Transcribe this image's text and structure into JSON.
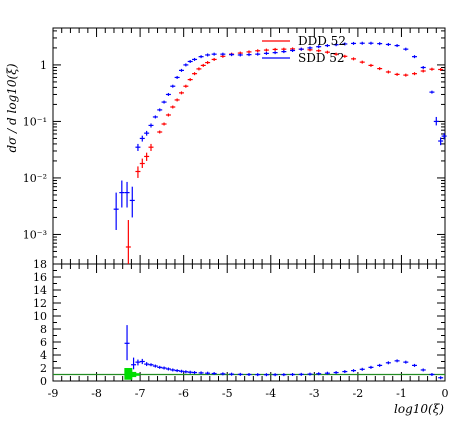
{
  "chart_data": [
    {
      "type": "scatter",
      "panel": "upper",
      "ylabel": "dσ / d log10(ξ)",
      "yscale": "log",
      "ylim": [
        0.0003,
        4.5
      ],
      "xlim": [
        -9,
        0
      ],
      "y_ticks": [
        {
          "value": 0.001,
          "label": "10⁻³"
        },
        {
          "value": 0.01,
          "label": "10⁻²"
        },
        {
          "value": 0.1,
          "label": "10⁻¹"
        },
        {
          "value": 1,
          "label": "1"
        }
      ],
      "legend": {
        "placement": "top-right",
        "entries": [
          "DDD 52",
          "SDD 52"
        ]
      },
      "series": [
        {
          "name": "DDD 52",
          "color": "#ff0000",
          "points": [
            [
              -7.27,
              0.0006,
              0.00025,
              0.0018
            ],
            [
              -7.05,
              0.013,
              0.01,
              0.016
            ],
            [
              -6.95,
              0.018,
              0.015,
              0.022
            ],
            [
              -6.85,
              0.024,
              0.02,
              0.028
            ],
            [
              -6.75,
              0.035,
              0.03,
              0.04
            ],
            [
              -6.55,
              0.065,
              null,
              null
            ],
            [
              -6.45,
              0.09,
              null,
              null
            ],
            [
              -6.35,
              0.13,
              null,
              null
            ],
            [
              -6.25,
              0.18,
              null,
              null
            ],
            [
              -6.15,
              0.24,
              null,
              null
            ],
            [
              -6.05,
              0.32,
              null,
              null
            ],
            [
              -5.95,
              0.42,
              null,
              null
            ],
            [
              -5.85,
              0.55,
              null,
              null
            ],
            [
              -5.75,
              0.7,
              null,
              null
            ],
            [
              -5.65,
              0.85,
              null,
              null
            ],
            [
              -5.55,
              0.98,
              null,
              null
            ],
            [
              -5.45,
              1.1,
              null,
              null
            ],
            [
              -5.3,
              1.25,
              null,
              null
            ],
            [
              -5.1,
              1.42,
              null,
              null
            ],
            [
              -4.9,
              1.55,
              null,
              null
            ],
            [
              -4.7,
              1.62,
              null,
              null
            ],
            [
              -4.5,
              1.7,
              null,
              null
            ],
            [
              -4.3,
              1.78,
              null,
              null
            ],
            [
              -4.1,
              1.83,
              null,
              null
            ],
            [
              -3.9,
              1.88,
              null,
              null
            ],
            [
              -3.7,
              1.9,
              null,
              null
            ],
            [
              -3.5,
              1.92,
              null,
              null
            ],
            [
              -3.3,
              1.9,
              null,
              null
            ],
            [
              -3.1,
              1.85,
              null,
              null
            ],
            [
              -2.9,
              1.78,
              null,
              null
            ],
            [
              -2.7,
              1.68,
              null,
              null
            ],
            [
              -2.5,
              1.55,
              null,
              null
            ],
            [
              -2.3,
              1.42,
              null,
              null
            ],
            [
              -2.1,
              1.28,
              null,
              null
            ],
            [
              -1.9,
              1.12,
              null,
              null
            ],
            [
              -1.7,
              0.98,
              null,
              null
            ],
            [
              -1.5,
              0.86,
              null,
              null
            ],
            [
              -1.3,
              0.75,
              null,
              null
            ],
            [
              -1.1,
              0.68,
              null,
              null
            ],
            [
              -0.9,
              0.66,
              null,
              null
            ],
            [
              -0.7,
              0.7,
              null,
              null
            ],
            [
              -0.5,
              0.78,
              null,
              null
            ],
            [
              -0.3,
              0.84,
              null,
              null
            ],
            [
              -0.1,
              0.83,
              null,
              null
            ]
          ]
        },
        {
          "name": "SDD 52",
          "color": "#0000ff",
          "points": [
            [
              -7.55,
              0.0028,
              0.0012,
              0.0055
            ],
            [
              -7.42,
              0.0055,
              0.003,
              0.009
            ],
            [
              -7.3,
              0.0055,
              0.003,
              0.0085
            ],
            [
              -7.18,
              0.004,
              0.002,
              0.007
            ],
            [
              -7.05,
              0.035,
              0.03,
              0.04
            ],
            [
              -6.95,
              0.05,
              0.044,
              0.056
            ],
            [
              -6.85,
              0.062,
              0.056,
              0.068
            ],
            [
              -6.75,
              0.085,
              0.078,
              0.092
            ],
            [
              -6.65,
              0.12,
              null,
              null
            ],
            [
              -6.55,
              0.16,
              null,
              null
            ],
            [
              -6.45,
              0.22,
              null,
              null
            ],
            [
              -6.35,
              0.3,
              null,
              null
            ],
            [
              -6.25,
              0.42,
              null,
              null
            ],
            [
              -6.15,
              0.6,
              null,
              null
            ],
            [
              -6.05,
              0.8,
              null,
              null
            ],
            [
              -5.95,
              1.0,
              null,
              null
            ],
            [
              -5.85,
              1.15,
              null,
              null
            ],
            [
              -5.75,
              1.25,
              null,
              null
            ],
            [
              -5.6,
              1.4,
              null,
              null
            ],
            [
              -5.45,
              1.5,
              null,
              null
            ],
            [
              -5.3,
              1.55,
              null,
              null
            ],
            [
              -5.1,
              1.55,
              null,
              null
            ],
            [
              -4.9,
              1.52,
              null,
              null
            ],
            [
              -4.7,
              1.5,
              null,
              null
            ],
            [
              -4.5,
              1.52,
              null,
              null
            ],
            [
              -4.3,
              1.55,
              null,
              null
            ],
            [
              -4.1,
              1.6,
              null,
              null
            ],
            [
              -3.9,
              1.65,
              null,
              null
            ],
            [
              -3.7,
              1.72,
              null,
              null
            ],
            [
              -3.5,
              1.8,
              null,
              null
            ],
            [
              -3.3,
              1.9,
              null,
              null
            ],
            [
              -3.1,
              2.0,
              null,
              null
            ],
            [
              -2.9,
              2.1,
              null,
              null
            ],
            [
              -2.7,
              2.2,
              null,
              null
            ],
            [
              -2.5,
              2.28,
              null,
              null
            ],
            [
              -2.3,
              2.35,
              null,
              null
            ],
            [
              -2.1,
              2.4,
              null,
              null
            ],
            [
              -1.9,
              2.42,
              null,
              null
            ],
            [
              -1.7,
              2.42,
              null,
              null
            ],
            [
              -1.5,
              2.38,
              null,
              null
            ],
            [
              -1.3,
              2.3,
              null,
              null
            ],
            [
              -1.1,
              2.2,
              null,
              null
            ],
            [
              -0.9,
              1.9,
              null,
              null
            ],
            [
              -0.7,
              1.4,
              null,
              null
            ],
            [
              -0.5,
              0.9,
              null,
              null
            ],
            [
              -0.3,
              0.33,
              null,
              null
            ],
            [
              -0.2,
              0.1,
              0.085,
              0.12
            ],
            [
              -0.1,
              0.045,
              0.038,
              0.052
            ],
            [
              -0.02,
              0.055,
              0.048,
              0.062
            ]
          ]
        }
      ]
    },
    {
      "type": "scatter",
      "panel": "lower",
      "ylim": [
        0,
        18
      ],
      "xlim": [
        -9,
        0
      ],
      "xlabel": "log10(ξ)",
      "x_ticks": [
        {
          "value": -9,
          "label": "-9"
        },
        {
          "value": -8,
          "label": "-8"
        },
        {
          "value": -7,
          "label": "-7"
        },
        {
          "value": -6,
          "label": "-6"
        },
        {
          "value": -5,
          "label": "-5"
        },
        {
          "value": -4,
          "label": "-4"
        },
        {
          "value": -3,
          "label": "-3"
        },
        {
          "value": -2,
          "label": "-2"
        },
        {
          "value": -1,
          "label": "-1"
        },
        {
          "value": 0,
          "label": "0"
        }
      ],
      "y_ticks": [
        {
          "value": 0,
          "label": "0"
        },
        {
          "value": 2,
          "label": "2"
        },
        {
          "value": 4,
          "label": "4"
        },
        {
          "value": 6,
          "label": "6"
        },
        {
          "value": 8,
          "label": "8"
        },
        {
          "value": 10,
          "label": "10"
        },
        {
          "value": 12,
          "label": "12"
        },
        {
          "value": 14,
          "label": "14"
        },
        {
          "value": 16,
          "label": "16"
        },
        {
          "value": 18,
          "label": "18"
        }
      ],
      "reference_line": {
        "y": 1,
        "color": "#228b22"
      },
      "band": {
        "color": "#00dd00",
        "points": [
          [
            -7.27,
            1.0,
            0.2,
            2.0
          ],
          [
            -7.18,
            1.0,
            0.6,
            1.4
          ],
          [
            -7.1,
            1.0,
            0.8,
            1.2
          ]
        ]
      },
      "ratio_series": {
        "color": "#0000ff",
        "points": [
          [
            -7.3,
            5.8,
            3.2,
            8.6
          ],
          [
            -7.15,
            2.5,
            1.8,
            3.6
          ],
          [
            -7.05,
            2.9,
            2.4,
            3.3
          ],
          [
            -6.95,
            3.0,
            2.6,
            3.4
          ],
          [
            -6.85,
            2.6,
            2.3,
            2.9
          ],
          [
            -6.75,
            2.5,
            null,
            null
          ],
          [
            -6.65,
            2.3,
            null,
            null
          ],
          [
            -6.55,
            2.1,
            null,
            null
          ],
          [
            -6.45,
            2.0,
            null,
            null
          ],
          [
            -6.35,
            1.85,
            null,
            null
          ],
          [
            -6.25,
            1.7,
            null,
            null
          ],
          [
            -6.15,
            1.6,
            null,
            null
          ],
          [
            -6.05,
            1.5,
            null,
            null
          ],
          [
            -5.95,
            1.42,
            null,
            null
          ],
          [
            -5.85,
            1.35,
            null,
            null
          ],
          [
            -5.75,
            1.3,
            null,
            null
          ],
          [
            -5.6,
            1.25,
            null,
            null
          ],
          [
            -5.45,
            1.2,
            null,
            null
          ],
          [
            -5.3,
            1.15,
            null,
            null
          ],
          [
            -5.1,
            1.1,
            null,
            null
          ],
          [
            -4.9,
            1.05,
            null,
            null
          ],
          [
            -4.7,
            1.02,
            null,
            null
          ],
          [
            -4.5,
            1.0,
            null,
            null
          ],
          [
            -4.3,
            0.98,
            null,
            null
          ],
          [
            -4.1,
            0.97,
            null,
            null
          ],
          [
            -3.9,
            0.97,
            null,
            null
          ],
          [
            -3.7,
            0.98,
            null,
            null
          ],
          [
            -3.5,
            1.0,
            null,
            null
          ],
          [
            -3.3,
            1.02,
            null,
            null
          ],
          [
            -3.1,
            1.06,
            null,
            null
          ],
          [
            -2.9,
            1.12,
            null,
            null
          ],
          [
            -2.7,
            1.2,
            null,
            null
          ],
          [
            -2.5,
            1.3,
            null,
            null
          ],
          [
            -2.3,
            1.45,
            null,
            null
          ],
          [
            -2.1,
            1.6,
            null,
            null
          ],
          [
            -1.9,
            1.8,
            null,
            null
          ],
          [
            -1.7,
            2.1,
            null,
            null
          ],
          [
            -1.5,
            2.4,
            null,
            null
          ],
          [
            -1.3,
            2.8,
            null,
            null
          ],
          [
            -1.1,
            3.1,
            null,
            null
          ],
          [
            -0.9,
            2.9,
            null,
            null
          ],
          [
            -0.7,
            2.4,
            null,
            null
          ],
          [
            -0.5,
            1.7,
            null,
            null
          ],
          [
            -0.3,
            1.0,
            null,
            null
          ],
          [
            -0.1,
            0.5,
            null,
            null
          ]
        ]
      }
    }
  ]
}
